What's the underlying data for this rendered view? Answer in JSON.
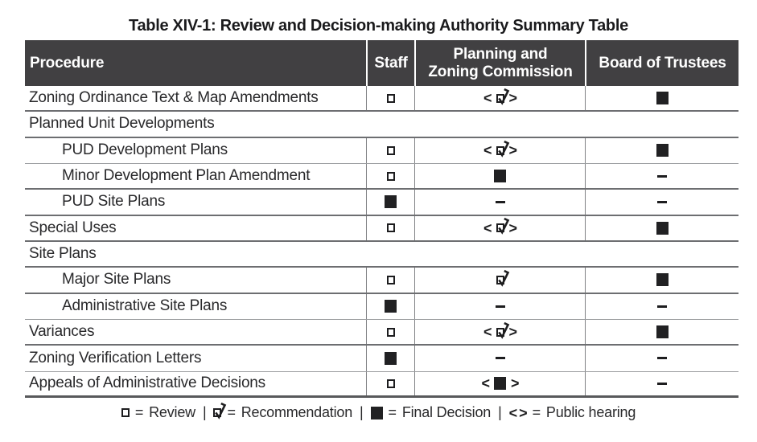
{
  "title": "Table XIV-1: Review and Decision-making Authority Summary Table",
  "colors": {
    "header_bg": "#414042",
    "header_text": "#ffffff",
    "symbol": "#1d1d1f",
    "grid_thick": "#6d6e71",
    "grid_thin": "#9b9da0",
    "grid_vertical": "#808285"
  },
  "symbols": {
    "bracket_open": "<",
    "bracket_close": ">"
  },
  "table": {
    "columns": [
      {
        "id": "procedure",
        "lines": [
          "Procedure"
        ]
      },
      {
        "id": "staff",
        "lines": [
          "Staff"
        ]
      },
      {
        "id": "planning-zoning",
        "lines": [
          "Planning and",
          "Zoning Commission"
        ]
      },
      {
        "id": "board",
        "lines": [
          "Board of Trustees"
        ]
      }
    ],
    "rows": [
      {
        "procedure": "Zoning Ordinance Text & Map Amendments",
        "section": false,
        "indent": false,
        "staff": {
          "sym": "review"
        },
        "pzc": {
          "sym": "rec",
          "hearing": true
        },
        "bot": {
          "sym": "final"
        },
        "border": "thick"
      },
      {
        "procedure": "Planned Unit Developments",
        "section": true,
        "border": "thick"
      },
      {
        "procedure": "PUD Development Plans",
        "section": false,
        "indent": true,
        "staff": {
          "sym": "review"
        },
        "pzc": {
          "sym": "rec",
          "hearing": true
        },
        "bot": {
          "sym": "final"
        },
        "border": "thin"
      },
      {
        "procedure": "Minor Development Plan Amendment",
        "section": false,
        "indent": true,
        "staff": {
          "sym": "review"
        },
        "pzc": {
          "sym": "final"
        },
        "bot": {
          "sym": "dash"
        },
        "border": "thick"
      },
      {
        "procedure": "PUD Site Plans",
        "section": false,
        "indent": true,
        "staff": {
          "sym": "final"
        },
        "pzc": {
          "sym": "dash"
        },
        "bot": {
          "sym": "dash"
        },
        "border": "thick"
      },
      {
        "procedure": "Special Uses",
        "section": false,
        "indent": false,
        "staff": {
          "sym": "review"
        },
        "pzc": {
          "sym": "rec",
          "hearing": true
        },
        "bot": {
          "sym": "final"
        },
        "border": "thick"
      },
      {
        "procedure": "Site Plans",
        "section": true,
        "border": "thick"
      },
      {
        "procedure": "Major Site Plans",
        "section": false,
        "indent": true,
        "staff": {
          "sym": "review"
        },
        "pzc": {
          "sym": "rec"
        },
        "bot": {
          "sym": "final"
        },
        "border": "thick"
      },
      {
        "procedure": "Administrative Site Plans",
        "section": false,
        "indent": true,
        "staff": {
          "sym": "final"
        },
        "pzc": {
          "sym": "dash"
        },
        "bot": {
          "sym": "dash"
        },
        "border": "thin"
      },
      {
        "procedure": "Variances",
        "section": false,
        "indent": false,
        "staff": {
          "sym": "review"
        },
        "pzc": {
          "sym": "rec",
          "hearing": true
        },
        "bot": {
          "sym": "final"
        },
        "border": "thick"
      },
      {
        "procedure": "Zoning Verification Letters",
        "section": false,
        "indent": false,
        "staff": {
          "sym": "final"
        },
        "pzc": {
          "sym": "dash"
        },
        "bot": {
          "sym": "dash"
        },
        "border": "thin"
      },
      {
        "procedure": "Appeals of Administrative Decisions",
        "section": false,
        "indent": false,
        "staff": {
          "sym": "review"
        },
        "pzc": {
          "sym": "final",
          "hearing": true
        },
        "bot": {
          "sym": "dash"
        },
        "border": "thick"
      }
    ]
  },
  "legend": {
    "equals": "=",
    "separator": "|",
    "items": [
      {
        "symbol": "review",
        "label": "Review"
      },
      {
        "symbol": "rec",
        "label": "Recommendation"
      },
      {
        "symbol": "final",
        "label": "Final Decision"
      },
      {
        "symbol": "hearing",
        "label": "Public hearing"
      }
    ]
  }
}
